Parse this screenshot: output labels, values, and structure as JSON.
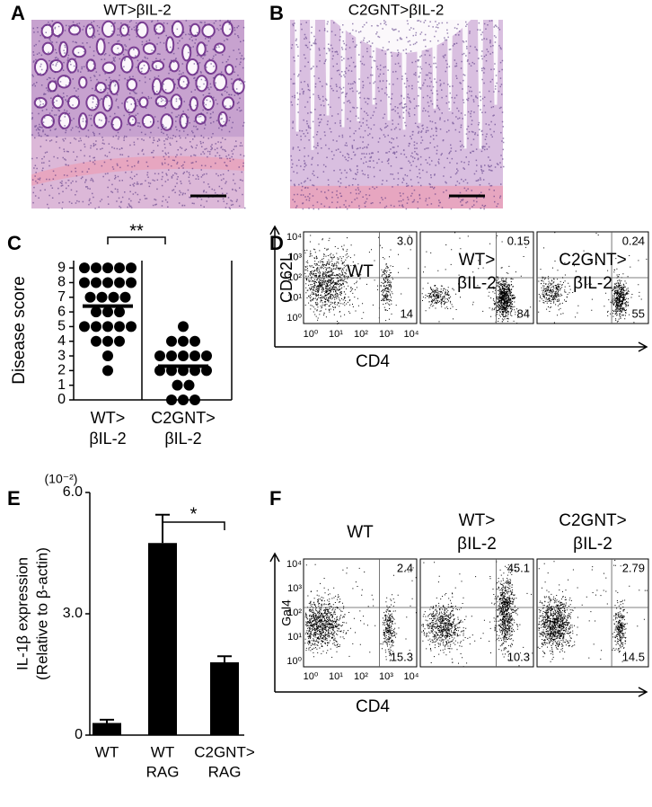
{
  "panels": {
    "a": "A",
    "b": "B",
    "c": "C",
    "d": "D",
    "e": "E",
    "f": "F"
  },
  "histology": [
    {
      "title": "WT>βIL-2"
    },
    {
      "title": "C2GNT>βIL-2"
    }
  ],
  "chart_data": [
    {
      "type": "strip",
      "y_label": "Disease score",
      "categories": [
        [
          "WT>",
          "βIL-2"
        ],
        [
          "C2GNT>",
          "βIL-2"
        ]
      ],
      "values": [
        [
          9,
          9,
          9,
          9,
          9,
          8,
          8,
          8,
          8,
          8,
          7,
          7,
          7,
          7,
          6,
          6,
          6,
          5,
          5,
          5,
          5,
          5,
          4,
          4,
          4,
          3,
          2
        ],
        [
          5,
          4,
          4,
          4,
          3,
          3,
          3,
          3,
          3,
          2,
          2,
          2,
          2,
          2,
          1,
          1,
          0,
          0,
          0
        ]
      ],
      "means": [
        6.4,
        2.3
      ],
      "ylim": [
        0,
        9.5
      ],
      "yticks": [
        0,
        1,
        2,
        3,
        4,
        5,
        6,
        7,
        8,
        9
      ],
      "significance": "**",
      "color": "#000000"
    },
    {
      "type": "bar",
      "y_label": [
        "IL-1β expression",
        "(Relative to β-actin)"
      ],
      "unit": "(10⁻²)",
      "categories": [
        [
          "WT"
        ],
        [
          "WT",
          "RAG"
        ],
        [
          "C2GNT>",
          "RAG"
        ]
      ],
      "values": [
        0.3,
        4.75,
        1.8
      ],
      "errors": [
        0.08,
        0.7,
        0.15
      ],
      "ylim": [
        0,
        6
      ],
      "yticks": [
        0,
        {
          "value": 3,
          "label": "3.0"
        },
        {
          "value": 6,
          "label": "6.0"
        }
      ],
      "significance": "*",
      "color": "#000000"
    }
  ],
  "flow": [
    {
      "y_label": "CD62L",
      "x_label": "CD4",
      "axis_ticks": [
        "10⁰",
        "10¹",
        "10²",
        "10³",
        "10⁴"
      ],
      "plots": [
        {
          "title": [
            "WT"
          ],
          "upper_right": "3.0",
          "lower_right": "14"
        },
        {
          "title": [
            "WT>",
            "βIL-2"
          ],
          "upper_right": "0.15",
          "lower_right": "84"
        },
        {
          "title": [
            "C2GNT>",
            "βIL-2"
          ],
          "upper_right": "0.24",
          "lower_right": "55"
        }
      ]
    },
    {
      "y_label": "Gal4",
      "x_label": "CD4",
      "axis_ticks": [
        "10⁰",
        "10¹",
        "10²",
        "10³",
        "10⁴"
      ],
      "plots": [
        {
          "title": [
            "WT"
          ],
          "upper_right": "2.4",
          "lower_right": "15.3"
        },
        {
          "title": [
            "WT>",
            "βIL-2"
          ],
          "upper_right": "45.1",
          "lower_right": "10.3"
        },
        {
          "title": [
            "C2GNT>",
            "βIL-2"
          ],
          "upper_right": "2.79",
          "lower_right": "14.5"
        }
      ]
    }
  ]
}
